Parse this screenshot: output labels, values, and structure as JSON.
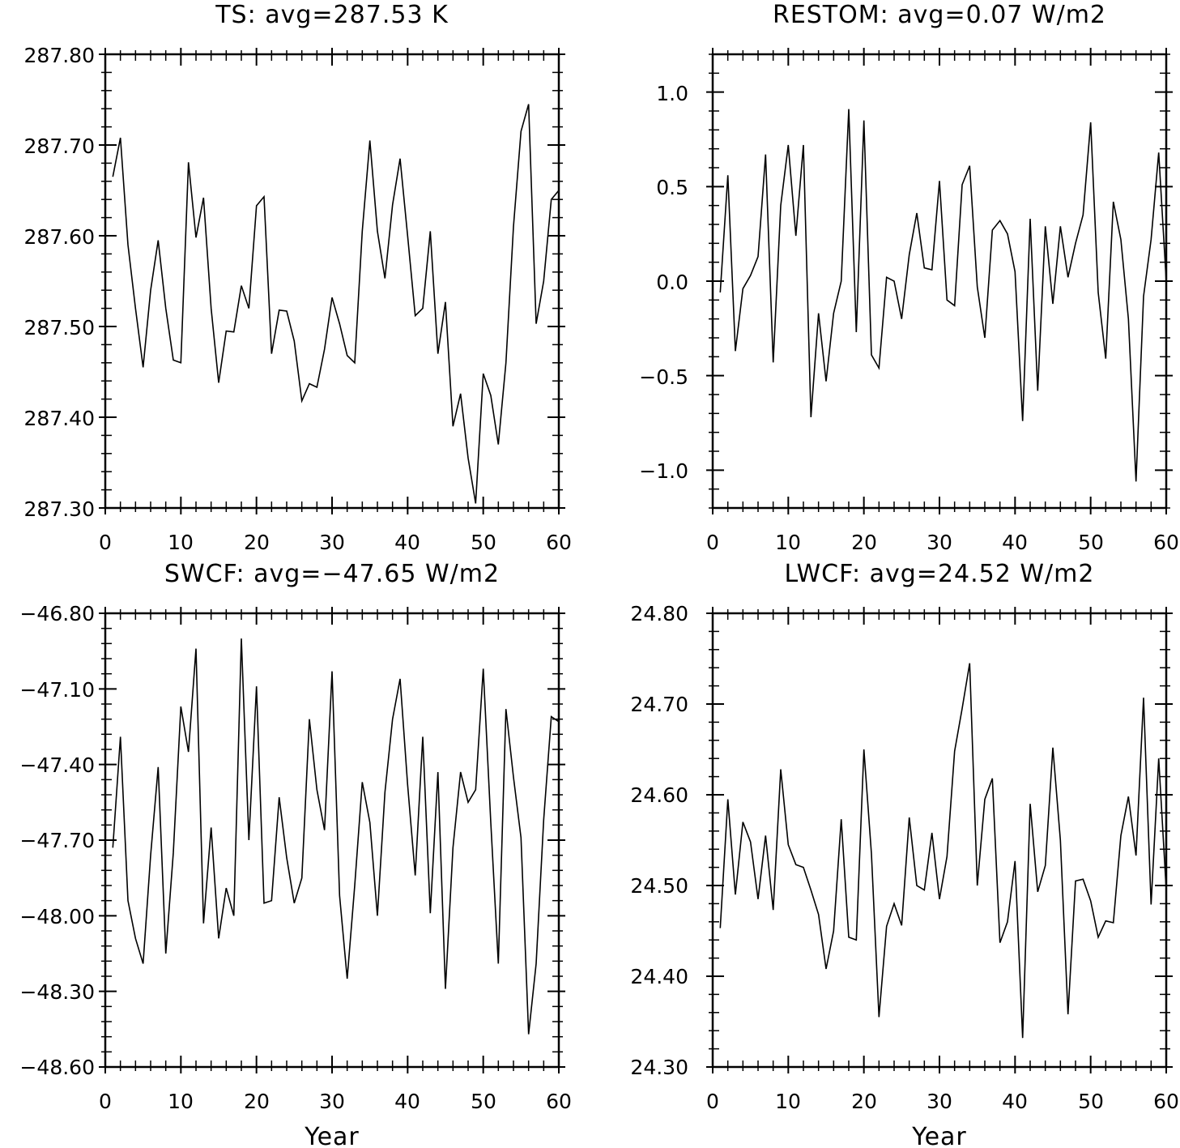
{
  "chart_data": [
    {
      "type": "line",
      "title": "TS: avg=287.53 K",
      "xlabel": "",
      "ylabel": "",
      "xlim": [
        0,
        60
      ],
      "ylim": [
        287.3,
        287.8
      ],
      "xticks": [
        "0",
        "10",
        "20",
        "30",
        "40",
        "50",
        "60"
      ],
      "yticks": [
        "287.30",
        "287.40",
        "287.50",
        "287.60",
        "287.70",
        "287.80"
      ],
      "grid": false,
      "series": [
        {
          "x": [
            1,
            2,
            3,
            4,
            5,
            6,
            7,
            8,
            9,
            10,
            11,
            12,
            13,
            14,
            15,
            16,
            17,
            18,
            19,
            20,
            21,
            22,
            23,
            24,
            25,
            26,
            27,
            28,
            29,
            30,
            31,
            32,
            33,
            34,
            35,
            36,
            37,
            38,
            39,
            40,
            41,
            42,
            43,
            44,
            45,
            46,
            47,
            48,
            49,
            50,
            51,
            52,
            53,
            54,
            55,
            56,
            57,
            58,
            59,
            60
          ],
          "values": [
            287.665,
            287.708,
            287.59,
            287.52,
            287.455,
            287.54,
            287.595,
            287.52,
            287.463,
            287.46,
            287.681,
            287.598,
            287.642,
            287.52,
            287.438,
            287.495,
            287.494,
            287.545,
            287.52,
            287.633,
            287.643,
            287.47,
            287.518,
            287.517,
            287.484,
            287.418,
            287.437,
            287.433,
            287.475,
            287.532,
            287.503,
            287.468,
            287.46,
            287.605,
            287.705,
            287.605,
            287.553,
            287.634,
            287.685,
            287.6,
            287.512,
            287.52,
            287.605,
            287.47,
            287.527,
            287.39,
            287.426,
            287.355,
            287.305,
            287.448,
            287.424,
            287.37,
            287.46,
            287.61,
            287.715,
            287.745,
            287.503,
            287.55,
            287.64,
            287.65
          ]
        }
      ]
    },
    {
      "type": "line",
      "title": "RESTOM: avg=0.07 W/m2",
      "xlabel": "",
      "ylabel": "",
      "xlim": [
        0,
        60
      ],
      "ylim": [
        -1.2,
        1.2
      ],
      "xticks": [
        "0",
        "10",
        "20",
        "30",
        "40",
        "50",
        "60"
      ],
      "yticks": [
        "−1.0",
        "−0.5",
        "0.0",
        "0.5",
        "1.0"
      ],
      "ytick_values": [
        -1.0,
        -0.5,
        0.0,
        0.5,
        1.0
      ],
      "grid": false,
      "series": [
        {
          "x": [
            1,
            2,
            3,
            4,
            5,
            6,
            7,
            8,
            9,
            10,
            11,
            12,
            13,
            14,
            15,
            16,
            17,
            18,
            19,
            20,
            21,
            22,
            23,
            24,
            25,
            26,
            27,
            28,
            29,
            30,
            31,
            32,
            33,
            34,
            35,
            36,
            37,
            38,
            39,
            40,
            41,
            42,
            43,
            44,
            45,
            46,
            47,
            48,
            49,
            50,
            51,
            52,
            53,
            54,
            55,
            56,
            57,
            58,
            59,
            60
          ],
          "values": [
            -0.06,
            0.56,
            -0.37,
            -0.04,
            0.03,
            0.13,
            0.67,
            -0.43,
            0.4,
            0.72,
            0.24,
            0.72,
            -0.72,
            -0.17,
            -0.53,
            -0.17,
            0.0,
            0.91,
            -0.27,
            0.85,
            -0.39,
            -0.46,
            0.02,
            0.0,
            -0.2,
            0.14,
            0.36,
            0.07,
            0.06,
            0.53,
            -0.1,
            -0.13,
            0.51,
            0.61,
            -0.03,
            -0.3,
            0.27,
            0.32,
            0.25,
            0.05,
            -0.74,
            0.33,
            -0.58,
            0.29,
            -0.12,
            0.29,
            0.02,
            0.2,
            0.35,
            0.84,
            -0.06,
            -0.41,
            0.42,
            0.22,
            -0.2,
            -1.06,
            -0.08,
            0.22,
            0.68,
            0.0
          ]
        }
      ]
    },
    {
      "type": "line",
      "title": "SWCF: avg=−47.65 W/m2",
      "xlabel": "Year",
      "ylabel": "",
      "xlim": [
        0,
        60
      ],
      "ylim": [
        -48.6,
        -46.8
      ],
      "xticks": [
        "0",
        "10",
        "20",
        "30",
        "40",
        "50",
        "60"
      ],
      "yticks": [
        "−48.60",
        "−48.30",
        "−48.00",
        "−47.70",
        "−47.40",
        "−47.10",
        "−46.80"
      ],
      "ytick_values": [
        -48.6,
        -48.3,
        -48.0,
        -47.7,
        -47.4,
        -47.1,
        -46.8
      ],
      "grid": false,
      "series": [
        {
          "x": [
            1,
            2,
            3,
            4,
            5,
            6,
            7,
            8,
            9,
            10,
            11,
            12,
            13,
            14,
            15,
            16,
            17,
            18,
            19,
            20,
            21,
            22,
            23,
            24,
            25,
            26,
            27,
            28,
            29,
            30,
            31,
            32,
            33,
            34,
            35,
            36,
            37,
            38,
            39,
            40,
            41,
            42,
            43,
            44,
            45,
            46,
            47,
            48,
            49,
            50,
            51,
            52,
            53,
            54,
            55,
            56,
            57,
            58,
            59,
            60
          ],
          "values": [
            -47.73,
            -47.29,
            -47.94,
            -48.09,
            -48.19,
            -47.76,
            -47.41,
            -48.15,
            -47.75,
            -47.17,
            -47.35,
            -46.94,
            -48.03,
            -47.65,
            -48.09,
            -47.89,
            -48.0,
            -46.9,
            -47.7,
            -47.09,
            -47.95,
            -47.94,
            -47.53,
            -47.77,
            -47.95,
            -47.85,
            -47.22,
            -47.5,
            -47.66,
            -47.03,
            -47.92,
            -48.25,
            -47.88,
            -47.47,
            -47.63,
            -48.0,
            -47.51,
            -47.22,
            -47.06,
            -47.48,
            -47.84,
            -47.29,
            -47.99,
            -47.43,
            -48.29,
            -47.73,
            -47.43,
            -47.55,
            -47.5,
            -47.02,
            -47.63,
            -48.19,
            -47.18,
            -47.45,
            -47.69,
            -48.47,
            -48.19,
            -47.62,
            -47.21,
            -47.23
          ]
        }
      ]
    },
    {
      "type": "line",
      "title": "LWCF: avg=24.52 W/m2",
      "xlabel": "Year",
      "ylabel": "",
      "xlim": [
        0,
        60
      ],
      "ylim": [
        24.3,
        24.8
      ],
      "xticks": [
        "0",
        "10",
        "20",
        "30",
        "40",
        "50",
        "60"
      ],
      "yticks": [
        "24.30",
        "24.40",
        "24.50",
        "24.60",
        "24.70",
        "24.80"
      ],
      "grid": false,
      "series": [
        {
          "x": [
            1,
            2,
            3,
            4,
            5,
            6,
            7,
            8,
            9,
            10,
            11,
            12,
            13,
            14,
            15,
            16,
            17,
            18,
            19,
            20,
            21,
            22,
            23,
            24,
            25,
            26,
            27,
            28,
            29,
            30,
            31,
            32,
            33,
            34,
            35,
            36,
            37,
            38,
            39,
            40,
            41,
            42,
            43,
            44,
            45,
            46,
            47,
            48,
            49,
            50,
            51,
            52,
            53,
            54,
            55,
            56,
            57,
            58,
            59,
            60
          ],
          "values": [
            24.453,
            24.595,
            24.49,
            24.57,
            24.548,
            24.485,
            24.555,
            24.473,
            24.628,
            24.545,
            24.523,
            24.52,
            24.495,
            24.468,
            24.408,
            24.45,
            24.573,
            24.443,
            24.44,
            24.65,
            24.535,
            24.355,
            24.455,
            24.48,
            24.456,
            24.575,
            24.5,
            24.495,
            24.558,
            24.485,
            24.532,
            24.648,
            24.695,
            24.745,
            24.5,
            24.595,
            24.618,
            24.437,
            24.46,
            24.527,
            24.332,
            24.59,
            24.493,
            24.522,
            24.652,
            24.55,
            24.358,
            24.505,
            24.507,
            24.483,
            24.443,
            24.461,
            24.459,
            24.555,
            24.598,
            24.533,
            24.707,
            24.479,
            24.64,
            24.495
          ]
        }
      ]
    }
  ]
}
